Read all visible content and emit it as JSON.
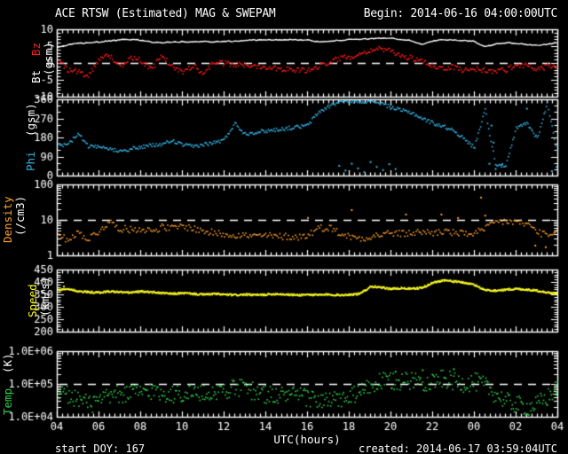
{
  "colors": {
    "background": "#000000",
    "frame": "#ffffff",
    "text": "#ffffff",
    "bt": "#ffffff",
    "bz": "#ff1a1a",
    "phi": "#35b6e8",
    "density": "#ffa028",
    "speed": "#ffff22",
    "temp": "#2fd049"
  },
  "header": {
    "title": "ACE RTSW (Estimated) MAG & SWEPAM",
    "begin": "Begin: 2014-06-16 04:00:00UTC"
  },
  "footer": {
    "start_doy": "start DOY: 167",
    "created": "created: 2014-06-17 03:59:04UTC"
  },
  "chart_data": {
    "type": "line",
    "title": "ACE RTSW (Estimated) MAG & SWEPAM",
    "description": "Five stacked time-series panels: Bt/Bz (nT gsm), Phi (deg gsm), Density (/cm3, log), Speed (km/s), Temp (K, log); 24 hours beginning 2014-06-16 04:00UTC; values sampled every 0.5 hour",
    "x": {
      "label": "UTC(hours)",
      "start_hour": 4,
      "end_hour": 28,
      "tick_step_hours": 2,
      "tick_labels": [
        "04",
        "06",
        "08",
        "10",
        "12",
        "14",
        "16",
        "18",
        "20",
        "22",
        "00",
        "02",
        "04"
      ],
      "sample_step_hours": 0.5
    },
    "panels": [
      {
        "name": "mag-bt-bz",
        "label_parts": [
          {
            "text": "Bt",
            "color": "#ffffff"
          },
          {
            "text": "Bz",
            "color": "#ff1a1a"
          },
          {
            "text": "(gsm)",
            "color": "#ffffff"
          }
        ],
        "scale": "linear",
        "ylim": [
          -10,
          10
        ],
        "yticks": [
          "10",
          "5",
          "0",
          "-5",
          "-10"
        ],
        "yminor": 1,
        "dashed_at": 0,
        "series": [
          {
            "name": "Bt",
            "color": "#ffffff",
            "style": "line",
            "spread": 0.3,
            "values": [
              4.5,
              5.3,
              5.8,
              6.0,
              6.2,
              6.5,
              6.8,
              7.0,
              6.8,
              6.2,
              6.0,
              6.2,
              6.3,
              6.2,
              6.4,
              6.3,
              6.5,
              6.4,
              6.7,
              6.8,
              6.8,
              6.9,
              6.9,
              6.9,
              6.8,
              6.3,
              6.5,
              6.7,
              6.9,
              7.0,
              7.2,
              7.4,
              7.3,
              7.0,
              6.6,
              5.5,
              6.4,
              7.0,
              6.8,
              6.6,
              6.5,
              4.8,
              5.6,
              6.0,
              5.8,
              5.5,
              5.2,
              5.6,
              6.0
            ]
          },
          {
            "name": "Bz",
            "color": "#ff1a1a",
            "style": "scatter",
            "step": 1.3,
            "spread": 0.8,
            "values": [
              1.0,
              -1.8,
              -2.5,
              -3.5,
              1.5,
              2.5,
              -1.0,
              2.0,
              1.0,
              -2.0,
              2.5,
              -1.0,
              -2.5,
              -0.5,
              -3.0,
              0.5,
              0.0,
              -0.3,
              -0.5,
              -0.6,
              -1.0,
              -1.3,
              -1.6,
              -2.0,
              -2.0,
              -1.0,
              0.5,
              1.5,
              2.0,
              3.0,
              4.0,
              4.5,
              3.5,
              2.5,
              1.5,
              0.5,
              -0.5,
              -1.5,
              -1.0,
              -2.0,
              -1.5,
              -2.0,
              -2.3,
              -1.8,
              -0.5,
              -0.3,
              -1.8,
              -0.8,
              -1.2
            ]
          }
        ]
      },
      {
        "name": "phi",
        "label_parts": [
          {
            "text": "Phi",
            "color": "#35b6e8"
          },
          {
            "text": "(gsm)",
            "color": "#ffffff"
          }
        ],
        "scale": "linear",
        "ylim": [
          0,
          360
        ],
        "yticks": [
          "360",
          "270",
          "180",
          "90",
          "0"
        ],
        "yminor": 30,
        "dashed_at": null,
        "series": [
          {
            "name": "Phi",
            "color": "#35b6e8",
            "style": "scatter",
            "step": 1.3,
            "spread": 9,
            "values": [
              145,
              150,
              200,
              140,
              135,
              128,
              122,
              128,
              138,
              145,
              150,
              168,
              148,
              140,
              150,
              158,
              172,
              250,
              200,
              208,
              214,
              220,
              226,
              232,
              240,
              300,
              330,
              350,
              358,
              352,
              358,
              345,
              325,
              310,
              300,
              272,
              252,
              235,
              218,
              175,
              135,
              320,
              60,
              45,
              225,
              252,
              180,
              345,
              95
            ]
          }
        ],
        "extra_scatter": [
          [
            17.5,
            50
          ],
          [
            17.8,
            28
          ],
          [
            18.1,
            60
          ],
          [
            18.4,
            38
          ],
          [
            18.7,
            20
          ],
          [
            19.0,
            68
          ],
          [
            19.3,
            45
          ],
          [
            19.6,
            30
          ],
          [
            19.9,
            58
          ],
          [
            20.2,
            35
          ],
          [
            24.7,
            60
          ],
          [
            24.8,
            240
          ],
          [
            24.9,
            160
          ],
          [
            25.0,
            35
          ],
          [
            25.3,
            55
          ],
          [
            26.5,
            320
          ],
          [
            27.7,
            25
          ],
          [
            28.0,
            45
          ]
        ]
      },
      {
        "name": "density",
        "label_parts": [
          {
            "text": "Density",
            "color": "#ffa028"
          },
          {
            "text": "(/cm3)",
            "color": "#ffffff"
          }
        ],
        "scale": "log",
        "ylim": [
          1,
          100
        ],
        "yticks": [
          "100",
          "10",
          "1"
        ],
        "yminor": null,
        "dashed_at": 10,
        "series": [
          {
            "name": "Density",
            "color": "#ffa028",
            "style": "scatter",
            "step": 1.6,
            "spread": 1.25,
            "values": [
              3.5,
              3.0,
              4.5,
              3.0,
              5.0,
              9.0,
              6.0,
              5.5,
              6.0,
              5.0,
              6.5,
              6.0,
              7.0,
              6.0,
              5.0,
              4.5,
              4.2,
              4.0,
              3.8,
              3.6,
              3.8,
              3.5,
              3.6,
              3.4,
              3.8,
              6.0,
              6.5,
              4.5,
              3.5,
              3.2,
              3.5,
              4.0,
              4.5,
              4.2,
              4.5,
              4.8,
              4.5,
              5.0,
              4.5,
              4.2,
              4.5,
              5.5,
              9.0,
              9.5,
              9.0,
              8.0,
              5.0,
              3.5,
              4.5
            ]
          }
        ],
        "extra_scatter": [
          [
            16.0,
            12
          ],
          [
            18.1,
            20
          ],
          [
            20.7,
            15
          ],
          [
            22.4,
            15
          ],
          [
            23.2,
            12
          ],
          [
            24.3,
            45
          ],
          [
            24.5,
            14
          ],
          [
            26.9,
            2.0
          ],
          [
            27.4,
            1.8
          ]
        ]
      },
      {
        "name": "speed",
        "label_parts": [
          {
            "text": "Speed",
            "color": "#ffff22"
          },
          {
            "text": "(km/s)",
            "color": "#ffffff"
          }
        ],
        "scale": "linear",
        "ylim": [
          200,
          450
        ],
        "yticks": [
          "450",
          "400",
          "350",
          "300",
          "250",
          "200"
        ],
        "yminor": 10,
        "dashed_at": null,
        "series": [
          {
            "name": "Speed",
            "color": "#ffff22",
            "style": "scatter",
            "step": 1.2,
            "spread": 4,
            "dense": true,
            "values": [
              370,
              375,
              365,
              362,
              360,
              365,
              362,
              360,
              365,
              362,
              358,
              355,
              358,
              355,
              352,
              355,
              352,
              350,
              352,
              350,
              352,
              355,
              352,
              350,
              352,
              350,
              352,
              350,
              352,
              355,
              385,
              380,
              375,
              378,
              375,
              380,
              400,
              410,
              405,
              400,
              390,
              370,
              368,
              372,
              375,
              372,
              368,
              360,
              355
            ]
          }
        ],
        "extra_scatter": [
          [
            4.3,
            385
          ]
        ]
      },
      {
        "name": "temp",
        "label_parts": [
          {
            "text": "Temp",
            "color": "#2fd049"
          },
          {
            "text": "(K)",
            "color": "#ffffff"
          }
        ],
        "scale": "log",
        "ylim": [
          10000,
          1000000
        ],
        "yticks": [
          "1.0E+06",
          "1.0E+05",
          "1.0E+04"
        ],
        "yminor": null,
        "dashed_at": 100000,
        "series": [
          {
            "name": "Temp",
            "color": "#2fd049",
            "style": "scatter",
            "step": 2.2,
            "spread": 1.9,
            "dense": true,
            "values": [
              60000,
              50000,
              35000,
              25000,
              30000,
              45000,
              50000,
              55000,
              60000,
              65000,
              55000,
              50000,
              55000,
              60000,
              50000,
              60000,
              70000,
              80000,
              75000,
              60000,
              50000,
              45000,
              50000,
              45000,
              40000,
              35000,
              30000,
              35000,
              40000,
              60000,
              90000,
              120000,
              130000,
              120000,
              140000,
              120000,
              130000,
              150000,
              120000,
              110000,
              120000,
              90000,
              50000,
              30000,
              25000,
              20000,
              25000,
              40000,
              80000
            ]
          }
        ],
        "extra_scatter": [
          [
            20.2,
            250000
          ],
          [
            21.5,
            280000
          ],
          [
            23.0,
            300000
          ],
          [
            27.9,
            100000
          ],
          [
            28.0,
            60000
          ]
        ]
      }
    ]
  }
}
